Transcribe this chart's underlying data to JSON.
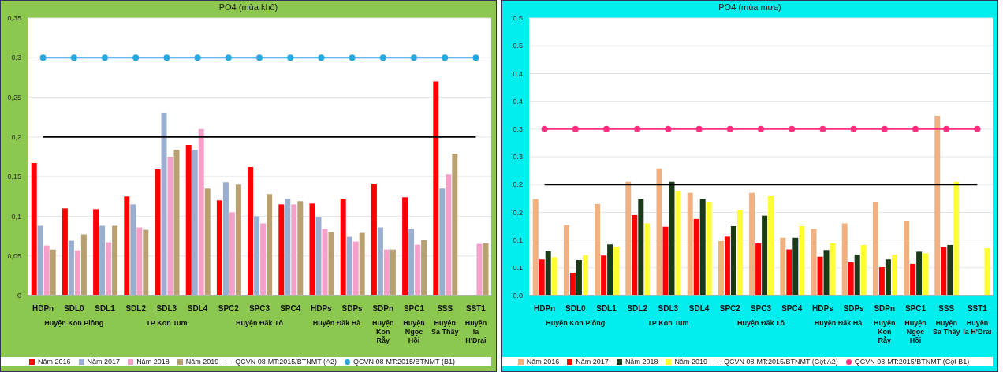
{
  "chart_data": [
    {
      "type": "bar",
      "title": "PO4 (mùa khô)",
      "categories": [
        "HDPn",
        "SDL0",
        "SDL1",
        "SDL2",
        "SDL3",
        "SDL4",
        "SPC2",
        "SPC3",
        "SPC4",
        "HDPs",
        "SDPs",
        "SDPn",
        "SPC1",
        "SSS",
        "SST1"
      ],
      "series": [
        {
          "name": "Năm 2016",
          "color": "#ff0000",
          "values": [
            0.167,
            0.11,
            0.109,
            0.125,
            0.159,
            0.19,
            0.12,
            0.162,
            0.115,
            0.116,
            0.122,
            0.141,
            0.124,
            0.27,
            null
          ]
        },
        {
          "name": "Năm 2017",
          "color": "#9aaed0",
          "values": [
            0.088,
            0.069,
            0.088,
            0.115,
            0.23,
            0.184,
            0.143,
            0.1,
            0.122,
            0.099,
            0.074,
            0.086,
            0.084,
            0.135,
            null
          ]
        },
        {
          "name": "Năm 2018",
          "color": "#f4a0c8",
          "values": [
            0.063,
            0.057,
            0.067,
            0.086,
            0.175,
            0.21,
            0.105,
            0.091,
            0.115,
            0.084,
            0.068,
            0.058,
            0.064,
            0.153,
            0.065
          ]
        },
        {
          "name": "Năm 2019",
          "color": "#b8a070",
          "values": [
            0.058,
            0.077,
            0.088,
            0.083,
            0.184,
            0.135,
            0.14,
            0.128,
            0.119,
            0.08,
            0.079,
            0.058,
            0.07,
            0.179,
            0.066
          ]
        },
        {
          "name": "QCVN 08-MT:2015/BTNMT (A2)",
          "type": "line",
          "color": "#000000",
          "marker": "none",
          "values": [
            0.2,
            0.2,
            0.2,
            0.2,
            0.2,
            0.2,
            0.2,
            0.2,
            0.2,
            0.2,
            0.2,
            0.2,
            0.2,
            0.2,
            0.2
          ]
        },
        {
          "name": "QCVN 08-MT:2015/BTNMT (B1)",
          "type": "line",
          "color": "#29a8e0",
          "marker": "circle",
          "values": [
            0.3,
            0.3,
            0.3,
            0.3,
            0.3,
            0.3,
            0.3,
            0.3,
            0.3,
            0.3,
            0.3,
            0.3,
            0.3,
            0.3,
            0.3
          ]
        }
      ],
      "ylim": [
        0,
        0.35
      ],
      "yticks": [
        {
          "value": 0,
          "label": "0"
        },
        {
          "value": 0.05,
          "label": "0,05"
        },
        {
          "value": 0.1,
          "label": "0,1"
        },
        {
          "value": 0.15,
          "label": "0,15"
        },
        {
          "value": 0.2,
          "label": "0,2"
        },
        {
          "value": 0.25,
          "label": "0,25"
        },
        {
          "value": 0.3,
          "label": "0,3"
        },
        {
          "value": 0.35,
          "label": "0,35"
        }
      ],
      "annotations": [
        "Huyện Kon Plông",
        "TP Kon Tum",
        "Huyện Đăk Tô",
        "Huyện Đăk Hà",
        "Huyện\nKon\nRẫy",
        "Huyện\nNgọc\nHồi",
        "Huyện\nSa Thầy",
        "Huyện\nIa\nH'Drai"
      ],
      "grid": "y",
      "legend": "bottom"
    },
    {
      "type": "bar",
      "title": "PO4 (mùa mưa)",
      "categories": [
        "HDPn",
        "SDL0",
        "SDL1",
        "SDL2",
        "SDL3",
        "SDL4",
        "SPC2",
        "SPC3",
        "SPC4",
        "HDPs",
        "SDPs",
        "SDPn",
        "SPC1",
        "SSS",
        "SST1"
      ],
      "series": [
        {
          "name": "Năm 2016",
          "color": "#f0b080",
          "values": [
            0.174,
            0.127,
            0.165,
            0.205,
            0.229,
            0.185,
            0.098,
            0.185,
            0.104,
            0.12,
            0.13,
            0.169,
            0.135,
            0.324,
            null
          ]
        },
        {
          "name": "Năm 2017",
          "color": "#ff0000",
          "values": [
            0.065,
            0.041,
            0.072,
            0.145,
            0.124,
            0.138,
            0.106,
            0.094,
            0.083,
            0.07,
            0.06,
            0.051,
            0.057,
            0.087,
            null
          ]
        },
        {
          "name": "Năm 2018",
          "color": "#1a3a1a",
          "values": [
            0.08,
            0.064,
            0.092,
            0.174,
            0.205,
            0.174,
            0.125,
            0.144,
            0.104,
            0.082,
            0.074,
            0.065,
            0.079,
            0.091,
            null
          ]
        },
        {
          "name": "Năm 2019",
          "color": "#ffff33",
          "values": [
            0.069,
            0.073,
            0.088,
            0.13,
            0.189,
            0.169,
            0.154,
            0.179,
            0.125,
            0.094,
            0.091,
            0.074,
            0.076,
            0.205,
            0.085
          ]
        },
        {
          "name": "QCVN 08-MT:2015/BTNMT (Cột A2)",
          "type": "line",
          "color": "#000000",
          "marker": "none",
          "values": [
            0.2,
            0.2,
            0.2,
            0.2,
            0.2,
            0.2,
            0.2,
            0.2,
            0.2,
            0.2,
            0.2,
            0.2,
            0.2,
            0.2,
            0.2
          ]
        },
        {
          "name": "QCVN 08-MT:2015/BTNMT (Cột B1)",
          "type": "line",
          "color": "#ff3080",
          "marker": "circle",
          "values": [
            0.3,
            0.3,
            0.3,
            0.3,
            0.3,
            0.3,
            0.3,
            0.3,
            0.3,
            0.3,
            0.3,
            0.3,
            0.3,
            0.3,
            0.3
          ]
        }
      ],
      "ylim": [
        0,
        0.5
      ],
      "yticks": [
        {
          "value": 0,
          "label": "0.0"
        },
        {
          "value": 0.05,
          "label": "0.1"
        },
        {
          "value": 0.1,
          "label": "0.1"
        },
        {
          "value": 0.15,
          "label": "0.2"
        },
        {
          "value": 0.2,
          "label": "0.2"
        },
        {
          "value": 0.25,
          "label": "0.3"
        },
        {
          "value": 0.3,
          "label": "0.3"
        },
        {
          "value": 0.35,
          "label": "0.4"
        },
        {
          "value": 0.4,
          "label": "0.4"
        },
        {
          "value": 0.45,
          "label": "0.5"
        },
        {
          "value": 0.5,
          "label": "0.5"
        }
      ],
      "annotations": [
        "Huyện Kon Plông",
        "TP Kon Tum",
        "Huyện Đăk Tô",
        "Huyện Đăk Hà",
        "Huyện\nKon\nRẫy",
        "Huyện\nNgọc\nHồi",
        "Huyện\nSa Thầy",
        "Huyện\nIa H'Drai"
      ],
      "grid": "y",
      "legend": "bottom"
    }
  ]
}
